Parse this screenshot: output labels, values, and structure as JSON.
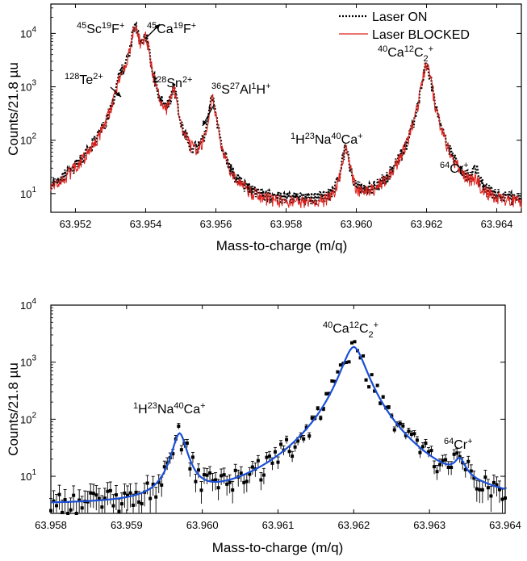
{
  "chart_data": [
    {
      "type": "line",
      "xlabel": "Mass-to-charge (m/q)",
      "ylabel": "Counts/21.8 µu",
      "xlim": [
        63.9513,
        63.9647
      ],
      "ylim_log10": [
        0.65,
        4.55
      ],
      "yscale": "log",
      "x_ticks": [
        63.952,
        63.954,
        63.956,
        63.958,
        63.96,
        63.962,
        63.964
      ],
      "y_ticks": [
        10,
        100,
        1000,
        10000
      ],
      "y_tick_labels": [
        "10",
        "10",
        "10",
        "10"
      ],
      "y_tick_exps": [
        "1",
        "2",
        "3",
        "4"
      ],
      "legend": {
        "placement": "top-right",
        "entries": [
          "Laser ON",
          "Laser BLOCKED"
        ]
      },
      "series": [
        {
          "name": "Laser ON",
          "color": "#000000",
          "style": "dotted",
          "peaks": [
            {
              "x": 63.9533,
              "height": 950,
              "width": 0.00018
            },
            {
              "x": 63.9537,
              "height": 12500,
              "width": 0.00019
            },
            {
              "x": 63.954,
              "height": 7000,
              "width": 0.00017
            },
            {
              "x": 63.9548,
              "height": 750,
              "width": 0.00016
            },
            {
              "x": 63.9559,
              "height": 600,
              "width": 0.00016
            },
            {
              "x": 63.9597,
              "height": 65,
              "width": 0.00015
            },
            {
              "x": 63.962,
              "height": 2600,
              "width": 0.00019
            },
            {
              "x": 63.9634,
              "height": 15,
              "width": 0.00013
            }
          ],
          "baseline": 7
        },
        {
          "name": "Laser BLOCKED",
          "color": "#e0201c",
          "style": "solid",
          "peaks": [
            {
              "x": 63.9533,
              "height": 900,
              "width": 0.00018
            },
            {
              "x": 63.9537,
              "height": 12000,
              "width": 0.00019
            },
            {
              "x": 63.954,
              "height": 6800,
              "width": 0.00017
            },
            {
              "x": 63.9548,
              "height": 700,
              "width": 0.00016
            },
            {
              "x": 63.9559,
              "height": 580,
              "width": 0.00016
            },
            {
              "x": 63.9597,
              "height": 62,
              "width": 0.00015
            },
            {
              "x": 63.962,
              "height": 2500,
              "width": 0.00019
            },
            {
              "x": 63.9634,
              "height": 7,
              "width": 0.00013
            }
          ],
          "baseline": 6
        }
      ],
      "annotations": [
        {
          "parts": [
            [
              "45",
              "sup"
            ],
            [
              "Sc",
              ""
            ],
            [
              "19",
              "sup"
            ],
            [
              "F",
              ""
            ],
            [
              "+",
              "sup"
            ]
          ]
        },
        {
          "parts": [
            [
              "45",
              "sup"
            ],
            [
              "Ca",
              ""
            ],
            [
              "19",
              "sup"
            ],
            [
              "F",
              ""
            ],
            [
              "+",
              "sup"
            ]
          ]
        },
        {
          "parts": [
            [
              "128",
              "sup"
            ],
            [
              "Te",
              ""
            ],
            [
              "2+",
              "sup"
            ]
          ]
        },
        {
          "parts": [
            [
              "128",
              "sup"
            ],
            [
              "Sn",
              ""
            ],
            [
              "2+",
              "sup"
            ]
          ]
        },
        {
          "parts": [
            [
              "36",
              "sup"
            ],
            [
              "S",
              ""
            ],
            [
              "27",
              "sup"
            ],
            [
              "Al",
              ""
            ],
            [
              "1",
              "sup"
            ],
            [
              "H",
              ""
            ],
            [
              "+",
              "sup"
            ]
          ]
        },
        {
          "parts": [
            [
              "1",
              "sup"
            ],
            [
              "H",
              ""
            ],
            [
              "23",
              "sup"
            ],
            [
              "Na",
              ""
            ],
            [
              "40",
              "sup"
            ],
            [
              "Ca",
              ""
            ],
            [
              "+",
              "sup"
            ]
          ]
        },
        {
          "parts": [
            [
              "40",
              "sup"
            ],
            [
              "Ca",
              ""
            ],
            [
              "12",
              "sup"
            ],
            [
              "C",
              ""
            ],
            [
              "2",
              "sub"
            ],
            [
              "+",
              "sup"
            ]
          ]
        },
        {
          "parts": [
            [
              "64",
              "sup"
            ],
            [
              "Cr",
              ""
            ],
            [
              "+",
              "sup"
            ]
          ]
        }
      ]
    },
    {
      "type": "scatter",
      "xlabel": "Mass-to-charge (m/q)",
      "ylabel": "Counts/21.8 µu",
      "xlim": [
        63.958,
        63.964
      ],
      "ylim_log10": [
        0.35,
        4.0
      ],
      "yscale": "log",
      "x_ticks": [
        63.958,
        63.959,
        63.96,
        63.961,
        63.962,
        63.963,
        63.964
      ],
      "y_ticks": [
        10,
        100,
        1000,
        10000
      ],
      "y_tick_labels": [
        "10",
        "10",
        "10",
        "10"
      ],
      "y_tick_exps": [
        "1",
        "2",
        "3",
        "4"
      ],
      "series": [
        {
          "kind": "data_with_errorbars",
          "color": "#000000",
          "x_range": [
            63.958,
            63.964
          ],
          "n_points": 160
        },
        {
          "kind": "fit",
          "color": "#1a4fd6",
          "peaks": [
            {
              "x": 63.9597,
              "height": 52,
              "width": 0.00014
            },
            {
              "x": 63.962,
              "height": 1850,
              "width": 0.00022
            },
            {
              "x": 63.9634,
              "height": 10,
              "width": 0.00012
            }
          ],
          "baseline": 3.3
        }
      ],
      "annotations": [
        {
          "parts": [
            [
              "1",
              "sup"
            ],
            [
              "H",
              ""
            ],
            [
              "23",
              "sup"
            ],
            [
              "Na",
              ""
            ],
            [
              "40",
              "sup"
            ],
            [
              "Ca",
              ""
            ],
            [
              "+",
              "sup"
            ]
          ]
        },
        {
          "parts": [
            [
              "40",
              "sup"
            ],
            [
              "Ca",
              ""
            ],
            [
              "12",
              "sup"
            ],
            [
              "C",
              ""
            ],
            [
              "2",
              "sub"
            ],
            [
              "+",
              "sup"
            ]
          ]
        },
        {
          "parts": [
            [
              "64",
              "sup"
            ],
            [
              "Cr",
              ""
            ],
            [
              "+",
              "sup"
            ]
          ]
        }
      ]
    }
  ]
}
